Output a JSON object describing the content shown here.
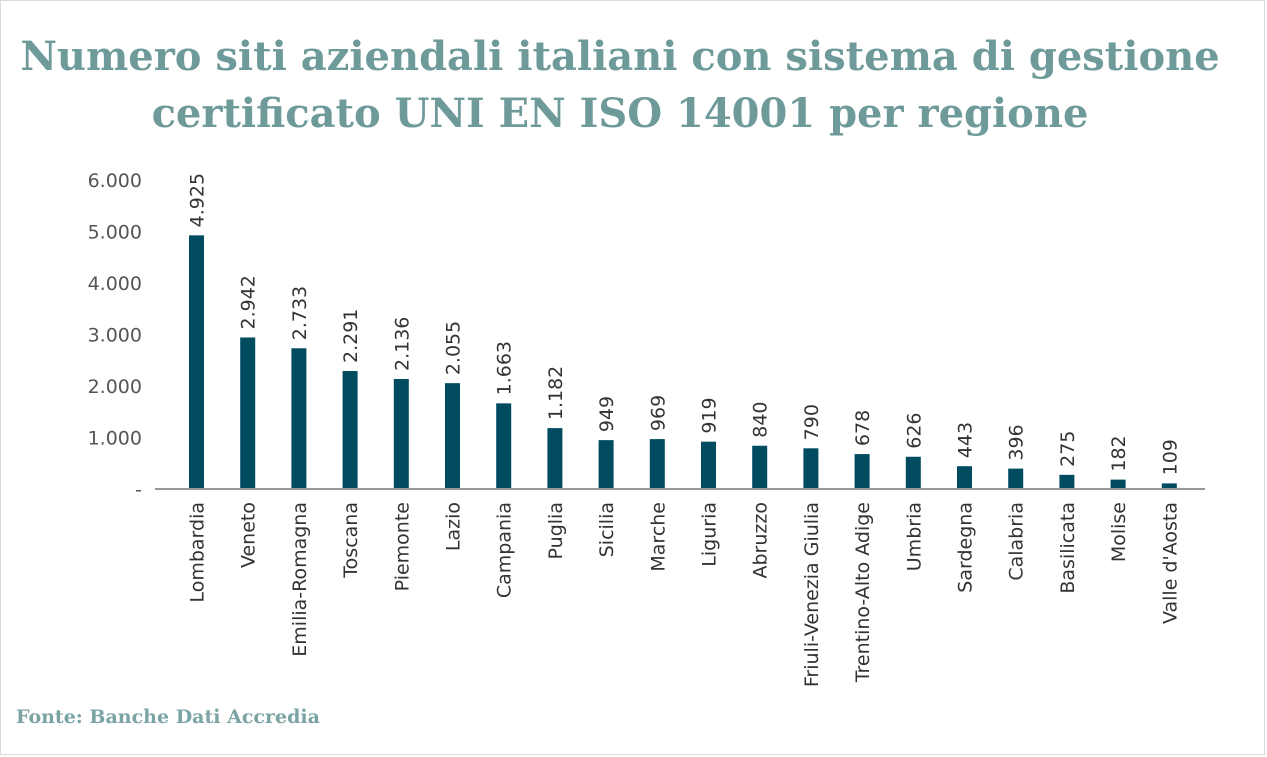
{
  "title_lines": [
    "Numero siti aziendali italiani con sistema di gestione",
    "certificato UNI EN ISO 14001 per regione"
  ],
  "source": "Fonte: Banche Dati Accredia",
  "colors": {
    "bar": "#004b5f",
    "title": "#6e9a9a",
    "axis": "#999999"
  },
  "chart_data": {
    "type": "bar",
    "title": "Numero siti aziendali italiani con sistema di gestione certificato UNI EN ISO 14001 per regione",
    "xlabel": "",
    "ylabel": "",
    "ylim": [
      0,
      6000
    ],
    "yticks": [
      0,
      1000,
      2000,
      3000,
      4000,
      5000,
      6000
    ],
    "ytick_labels": [
      "-",
      "1.000",
      "2.000",
      "3.000",
      "4.000",
      "5.000",
      "6.000"
    ],
    "grid": false,
    "categories": [
      "Lombardia",
      "Veneto",
      "Emilia-Romagna",
      "Toscana",
      "Piemonte",
      "Lazio",
      "Campania",
      "Puglia",
      "Sicilia",
      "Marche",
      "Liguria",
      "Abruzzo",
      "Friuli-Venezia Giulia",
      "Trentino-Alto Adige",
      "Umbria",
      "Sardegna",
      "Calabria",
      "Basilicata",
      "Molise",
      "Valle d'Aosta"
    ],
    "values": [
      4925,
      2942,
      2733,
      2291,
      2136,
      2055,
      1663,
      1182,
      949,
      969,
      919,
      840,
      790,
      678,
      626,
      443,
      396,
      275,
      182,
      109
    ],
    "value_labels": [
      "4.925",
      "2.942",
      "2.733",
      "2.291",
      "2.136",
      "2.055",
      "1.663",
      "1.182",
      "949",
      "969",
      "919",
      "840",
      "790",
      "678",
      "626",
      "443",
      "396",
      "275",
      "182",
      "109"
    ]
  }
}
